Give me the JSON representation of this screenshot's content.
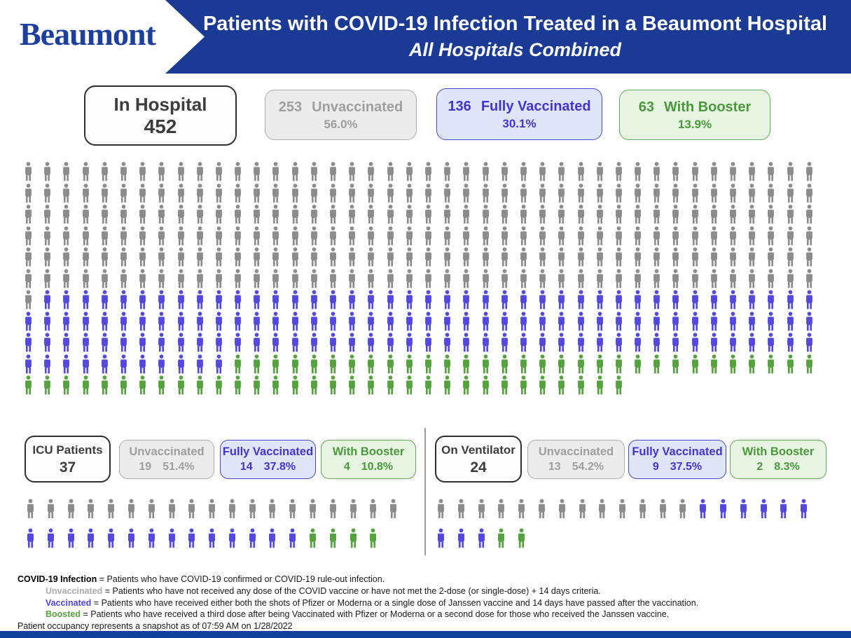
{
  "header": {
    "logo": "Beaumont",
    "title": "Patients with COVID-19 Infection Treated in a Beaumont Hospital",
    "subtitle": "All Hospitals Combined",
    "banner_color": "#1b3a96"
  },
  "summary": {
    "main": {
      "label": "In Hospital",
      "value": "452"
    },
    "unvaccinated": {
      "value": "253",
      "label": "Unvaccinated",
      "pct": "56.0%"
    },
    "vaccinated": {
      "value": "136",
      "label": "Fully Vaccinated",
      "pct": "30.1%"
    },
    "booster": {
      "value": "63",
      "label": "With Booster",
      "pct": "13.9%"
    }
  },
  "icu": {
    "main": {
      "label": "ICU Patients",
      "value": "37"
    },
    "unvaccinated": {
      "label": "Unvaccinated",
      "value": "19",
      "pct": "51.4%"
    },
    "vaccinated": {
      "label": "Fully Vaccinated",
      "value": "14",
      "pct": "37.8%"
    },
    "booster": {
      "label": "With Booster",
      "value": "4",
      "pct": "10.8%"
    }
  },
  "ventilator": {
    "main": {
      "label": "On Ventilator",
      "value": "24"
    },
    "unvaccinated": {
      "label": "Unvaccinated",
      "value": "13",
      "pct": "54.2%"
    },
    "vaccinated": {
      "label": "Fully Vaccinated",
      "value": "9",
      "pct": "37.5%"
    },
    "booster": {
      "label": "With Booster",
      "value": "2",
      "pct": "8.3%"
    }
  },
  "footer": {
    "lines": [
      {
        "term": "COVID-19 Infection",
        "rest": " = Patients who have COVID-19 confirmed or COVID-19 rule-out infection."
      },
      {
        "term": "Unvaccinated",
        "rest": " = Patients who have not received any dose of the COVID vaccine or have not met the 2-dose (or single-dose) + 14 days criteria."
      },
      {
        "term": "Vaccinated",
        "rest": " = Patients who have received either both the shots of Pfizer or Moderna or a single dose of Janssen vaccine and 14 days have passed after the vaccination."
      },
      {
        "term": "Boosted",
        "rest": " = Patients who have received a third dose after being Vaccinated with Pfizer or Moderna or a second dose for those who received the Janssen vaccine."
      },
      {
        "term": "",
        "rest": "Patient occupancy represents a snapshot as of 07:59 AM on 1/28/2022"
      }
    ]
  },
  "colors": {
    "unvaccinated": "#8c8c8c",
    "fully_vaccinated": "#5349e1",
    "with_booster": "#55a33f",
    "banner_blue": "#1b3a96",
    "bottom_bar_blue": "#104099"
  },
  "chart_data": [
    {
      "type": "pictogram_waffle",
      "name": "in-hospital",
      "title": "In Hospital",
      "total": 452,
      "rows": 11,
      "cols": 42,
      "fill_order": "row-major",
      "icon": "person",
      "segments": [
        {
          "label": "Unvaccinated",
          "count": 253,
          "pct": "56.0%",
          "color": "#8c8c8c"
        },
        {
          "label": "Fully Vaccinated",
          "count": 136,
          "pct": "30.1%",
          "color": "#5349e1"
        },
        {
          "label": "With Booster",
          "count": 63,
          "pct": "13.9%",
          "color": "#55a33f"
        }
      ]
    },
    {
      "type": "pictogram_waffle",
      "name": "icu",
      "title": "ICU Patients",
      "total": 37,
      "rows": 2,
      "cols": 19,
      "fill_order": "row-major",
      "icon": "person",
      "segments": [
        {
          "label": "Unvaccinated",
          "count": 19,
          "pct": "51.4%",
          "color": "#8c8c8c"
        },
        {
          "label": "Fully Vaccinated",
          "count": 14,
          "pct": "37.8%",
          "color": "#5349e1"
        },
        {
          "label": "With Booster",
          "count": 4,
          "pct": "10.8%",
          "color": "#55a33f"
        }
      ]
    },
    {
      "type": "pictogram_waffle",
      "name": "ventilator",
      "title": "On Ventilator",
      "total": 24,
      "rows": 2,
      "cols": 19,
      "fill_order": "row-major",
      "icon": "person",
      "segments": [
        {
          "label": "Unvaccinated",
          "count": 13,
          "pct": "54.2%",
          "color": "#8c8c8c"
        },
        {
          "label": "Fully Vaccinated",
          "count": 9,
          "pct": "37.5%",
          "color": "#5349e1"
        },
        {
          "label": "With Booster",
          "count": 2,
          "pct": "8.3%",
          "color": "#55a33f"
        }
      ]
    }
  ]
}
